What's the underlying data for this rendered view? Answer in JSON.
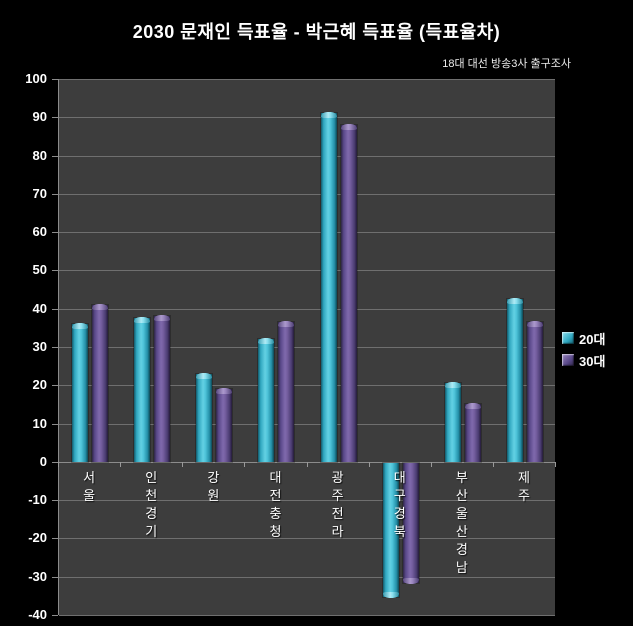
{
  "title": "2030 문재인 득표율 - 박근혜 득표율 (득표율차)",
  "subtitle": "18대 대선 방송3사 출구조사",
  "legend": {
    "items": [
      {
        "label": "20대"
      },
      {
        "label": "30대"
      }
    ],
    "position": "right"
  },
  "colors": {
    "background": "#000000",
    "plot_background": "#3d3d3d",
    "gridline": "#6f6f6f",
    "axis_line": "#8c8c8c",
    "text": "#ffffff",
    "series_20s": "#4cc3d9",
    "series_30s": "#6f5a98"
  },
  "chart_data": {
    "type": "bar",
    "title": "2030 문재인 득표율 - 박근혜 득표율 (득표율차)",
    "subtitle": "18대 대선 방송3사 출구조사",
    "categories": [
      "서울",
      "인천경기",
      "강원",
      "대전충청",
      "광주전라",
      "대구경북",
      "부산울산경남",
      "제주"
    ],
    "category_ids": [
      "seoul",
      "incheon-gyeonggi",
      "gangwon",
      "daejeon-chungcheong",
      "gwangju-jeolla",
      "daegu-gyeongbuk",
      "busan-ulsan-gyeongnam",
      "jeju"
    ],
    "series": [
      {
        "name": "20대",
        "color": "#4cc3d9",
        "values": [
          36,
          37.5,
          23,
          32,
          91,
          -35,
          20.5,
          42.5
        ]
      },
      {
        "name": "30대",
        "color": "#6f5a98",
        "values": [
          41,
          38,
          19,
          36.5,
          88,
          -31.5,
          15,
          36.5
        ]
      }
    ],
    "xlabel": "",
    "ylabel": "",
    "ylim": [
      -40,
      100
    ],
    "ytick_step": 10,
    "yticks": [
      100,
      90,
      80,
      70,
      60,
      50,
      40,
      30,
      20,
      10,
      0,
      -10,
      -20,
      -30,
      -40
    ],
    "grid": true,
    "legend_position": "right",
    "xlabel_orientation": "vertical-stacked"
  }
}
